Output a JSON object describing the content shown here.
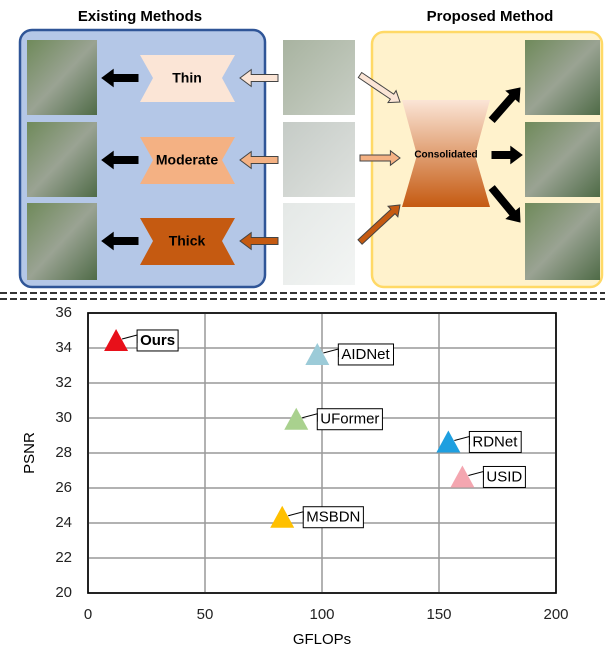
{
  "diagram": {
    "left_title": "Existing Methods",
    "right_title": "Proposed Method",
    "blocks": [
      "Thin",
      "Moderate",
      "Thick"
    ],
    "consolidated": "Consolidated"
  },
  "chart_data": {
    "type": "scatter",
    "xlabel": "GFLOPs",
    "ylabel": "PSNR",
    "xlim": [
      0,
      200
    ],
    "xticks": [
      0,
      50,
      100,
      150,
      200
    ],
    "ylim": [
      20,
      36
    ],
    "yticks": [
      20,
      22,
      24,
      26,
      28,
      30,
      32,
      34,
      36
    ],
    "grid": true,
    "series": [
      {
        "name": "Ours",
        "color": "#e8101a",
        "x": [
          12
        ],
        "values": [
          34.4
        ]
      },
      {
        "name": "AIDNet",
        "color": "#9ccbd8",
        "x": [
          98
        ],
        "values": [
          33.6
        ]
      },
      {
        "name": "UFormer",
        "color": "#a9d18e",
        "x": [
          89
        ],
        "values": [
          29.9
        ]
      },
      {
        "name": "RDNet",
        "color": "#1e9fe0",
        "x": [
          154
        ],
        "values": [
          28.6
        ]
      },
      {
        "name": "USID",
        "color": "#f4a6b0",
        "x": [
          160
        ],
        "values": [
          26.6
        ]
      },
      {
        "name": "MSBDN",
        "color": "#ffc000",
        "x": [
          83
        ],
        "values": [
          24.3
        ]
      }
    ]
  }
}
